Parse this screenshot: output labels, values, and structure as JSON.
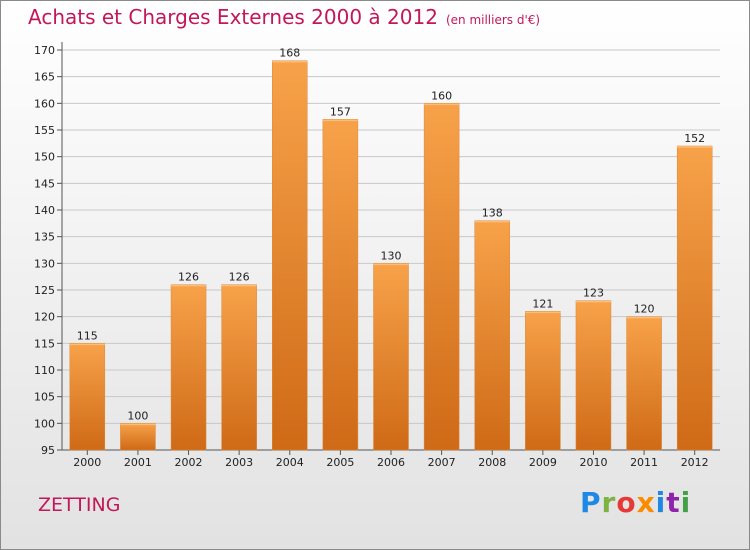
{
  "header": {
    "title": "Achats et Charges Externes 2000 à 2012",
    "unit": "(en milliers d'€)"
  },
  "footer": {
    "commune": "ZETTING",
    "logo_text": "Proxiti"
  },
  "colors": {
    "title": "#c2185b",
    "bar_light": "#f7a24a",
    "bar_dark": "#cf6a17",
    "logo_letters": [
      "#1e88e5",
      "#7cb342",
      "#e53935",
      "#fb8c00",
      "#1e88e5",
      "#8e24aa",
      "#43a047"
    ]
  },
  "chart_data": {
    "type": "bar",
    "title": "Achats et Charges Externes 2000 à 2012",
    "subtitle": "(en milliers d'€)",
    "categories": [
      "2000",
      "2001",
      "2002",
      "2003",
      "2004",
      "2005",
      "2006",
      "2007",
      "2008",
      "2009",
      "2010",
      "2011",
      "2012"
    ],
    "values": [
      115,
      100,
      126,
      126,
      168,
      157,
      130,
      160,
      138,
      121,
      123,
      120,
      152
    ],
    "ylim": [
      95,
      170
    ],
    "yticks": [
      95,
      100,
      105,
      110,
      115,
      120,
      125,
      130,
      135,
      140,
      145,
      150,
      155,
      160,
      165,
      170
    ],
    "grid": true,
    "data_labels": true
  }
}
